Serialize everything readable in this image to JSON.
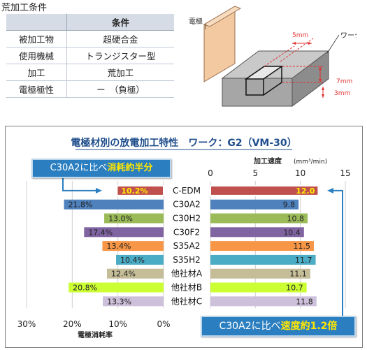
{
  "conditions": {
    "title": "荒加工条件",
    "header": "条件",
    "rows": [
      {
        "label": "被加工物",
        "value": "超硬合金"
      },
      {
        "label": "使用機械",
        "value": "トランジスター型"
      },
      {
        "label": "加工",
        "value": "荒加工"
      },
      {
        "label": "電極極性",
        "value": "ー　（負極）"
      }
    ]
  },
  "diagram": {
    "electrode_label": "電極",
    "work_label": "ワーク",
    "dim_width": "5mm",
    "dim_height": "7mm",
    "dim_depth": "3mm"
  },
  "chart_data": {
    "type": "bar",
    "title": "電極材別の放電加工特性　ワーク：G2（VM-30）",
    "categories": [
      "C-EDM",
      "C30A2",
      "C30H2",
      "C30F2",
      "S35A2",
      "S35H2",
      "他社材A",
      "他社材B",
      "他社材C"
    ],
    "colors": [
      "#c0504d",
      "#4f81bd",
      "#9bbb59",
      "#8064a2",
      "#f79646",
      "#4bacc6",
      "#c4bd97",
      "#ccff33",
      "#ccc0da"
    ],
    "left": {
      "label": "電極消耗率",
      "unit": "%",
      "values": [
        10.2,
        21.8,
        13.0,
        17.4,
        13.4,
        10.4,
        12.4,
        20.8,
        13.3
      ],
      "value_labels": [
        "10.2%",
        "21.8%",
        "13.0%",
        "17.4%",
        "13.4%",
        "10.4%",
        "12.4%",
        "20.8%",
        "13.3%"
      ],
      "ticks": [
        "30%",
        "20%",
        "10%",
        "0%"
      ],
      "xlim": [
        30,
        0
      ]
    },
    "right": {
      "label": "加工速度",
      "unit": "(mm³/min)",
      "values": [
        12.0,
        9.8,
        10.8,
        10.4,
        11.5,
        11.7,
        11.1,
        10.7,
        11.8
      ],
      "value_labels": [
        "12.0",
        "9.8",
        "10.8",
        "10.4",
        "11.5",
        "11.7",
        "11.1",
        "10.7",
        "11.8"
      ],
      "ticks": [
        "0",
        "5",
        "10",
        "15"
      ],
      "xlim": [
        0,
        15
      ]
    },
    "grid": true
  },
  "callouts": {
    "left": {
      "prefix": "C30A2に比べ",
      "highlight": "消耗約半分"
    },
    "right": {
      "prefix": "C30A2に比べ",
      "highlight": "速度約1.2倍"
    }
  }
}
